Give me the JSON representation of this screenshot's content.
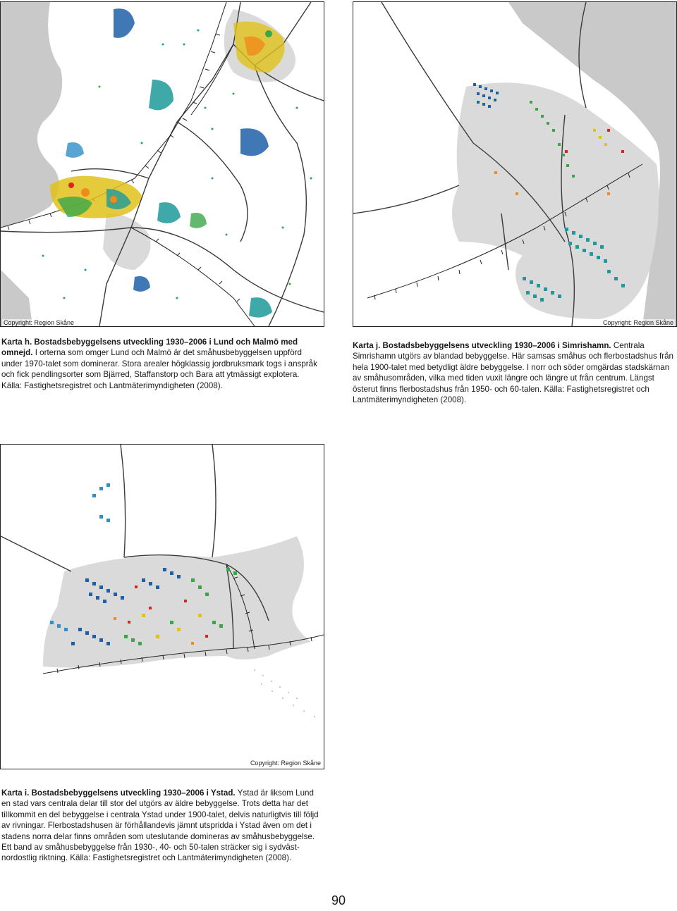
{
  "map_h": {
    "copyright": "Copyright: Region Skåne",
    "caption_title": "Karta h. Bostadsbebyggelsens utveckling 1930–2006 i Lund och Malmö med omnejd.",
    "caption_body": "I orterna som omger Lund och Malmö är det småhusbebyggelsen uppförd under 1970-talet som dominerar. Stora arealer högklassig jordbruksmark togs i anspråk och fick pendlingsorter som Bjärred, Staffanstorp och Bara att ytmässigt explotera. Källa: Fastighetsregistret och Lantmäterimyndigheten (2008)."
  },
  "map_j": {
    "copyright": "Copyright: Region Skåne",
    "caption_title": "Karta j. Bostadsbebyggelsens utveckling 1930–2006 i Simrishamn.",
    "caption_body": "Centrala Simrishamn utgörs av blandad bebyggelse. Här samsas småhus och flerbostadshus från hela 1900-talet med betydligt äldre bebyggelse. I norr och söder omgärdas stadskärnan av småhusområden, vilka med tiden vuxit längre och längre ut från centrum. Längst österut finns flerbostadshus från 1950- och 60-talen. Källa: Fastighetsregistret och Lantmäterimyndigheten (2008)."
  },
  "map_i": {
    "copyright": "Copyright: Region Skåne",
    "caption_title": "Karta i. Bostadsbebyggelsens utveckling 1930–2006 i Ystad.",
    "caption_body": "Ystad är liksom Lund en stad vars centrala delar till stor del utgörs av äldre bebyggelse. Trots detta har det tillkommit en del bebyggelse i centrala Ystad under 1900-talet, delvis naturligtvis till följd av rivningar. Flerbostadshusen är förhållandevis jämnt utspridda i Ystad även om det i stadens norra delar finns områden som uteslutande domineras av småhusbebyggelse. Ett band av småhusbebyggelse från 1930-, 40- och 50-talen sträcker sig i sydväst-nordostlig riktning. Källa: Fastighetsregistret och Lantmäterimyndigheten (2008)."
  },
  "page_number": "90",
  "colors": {
    "sea": "#c9c9c9",
    "urban": "#dadada",
    "road": "#3a3a3a",
    "era_1930s": "#1f5fa8",
    "era_1940s": "#2e8fc9",
    "era_1950s": "#1d9a9a",
    "era_1960s": "#3aa64a",
    "era_1970s": "#e0c21a",
    "era_1980s": "#f08a1a",
    "era_1990s": "#d9261c",
    "era_2000s": "#b01c5e"
  }
}
